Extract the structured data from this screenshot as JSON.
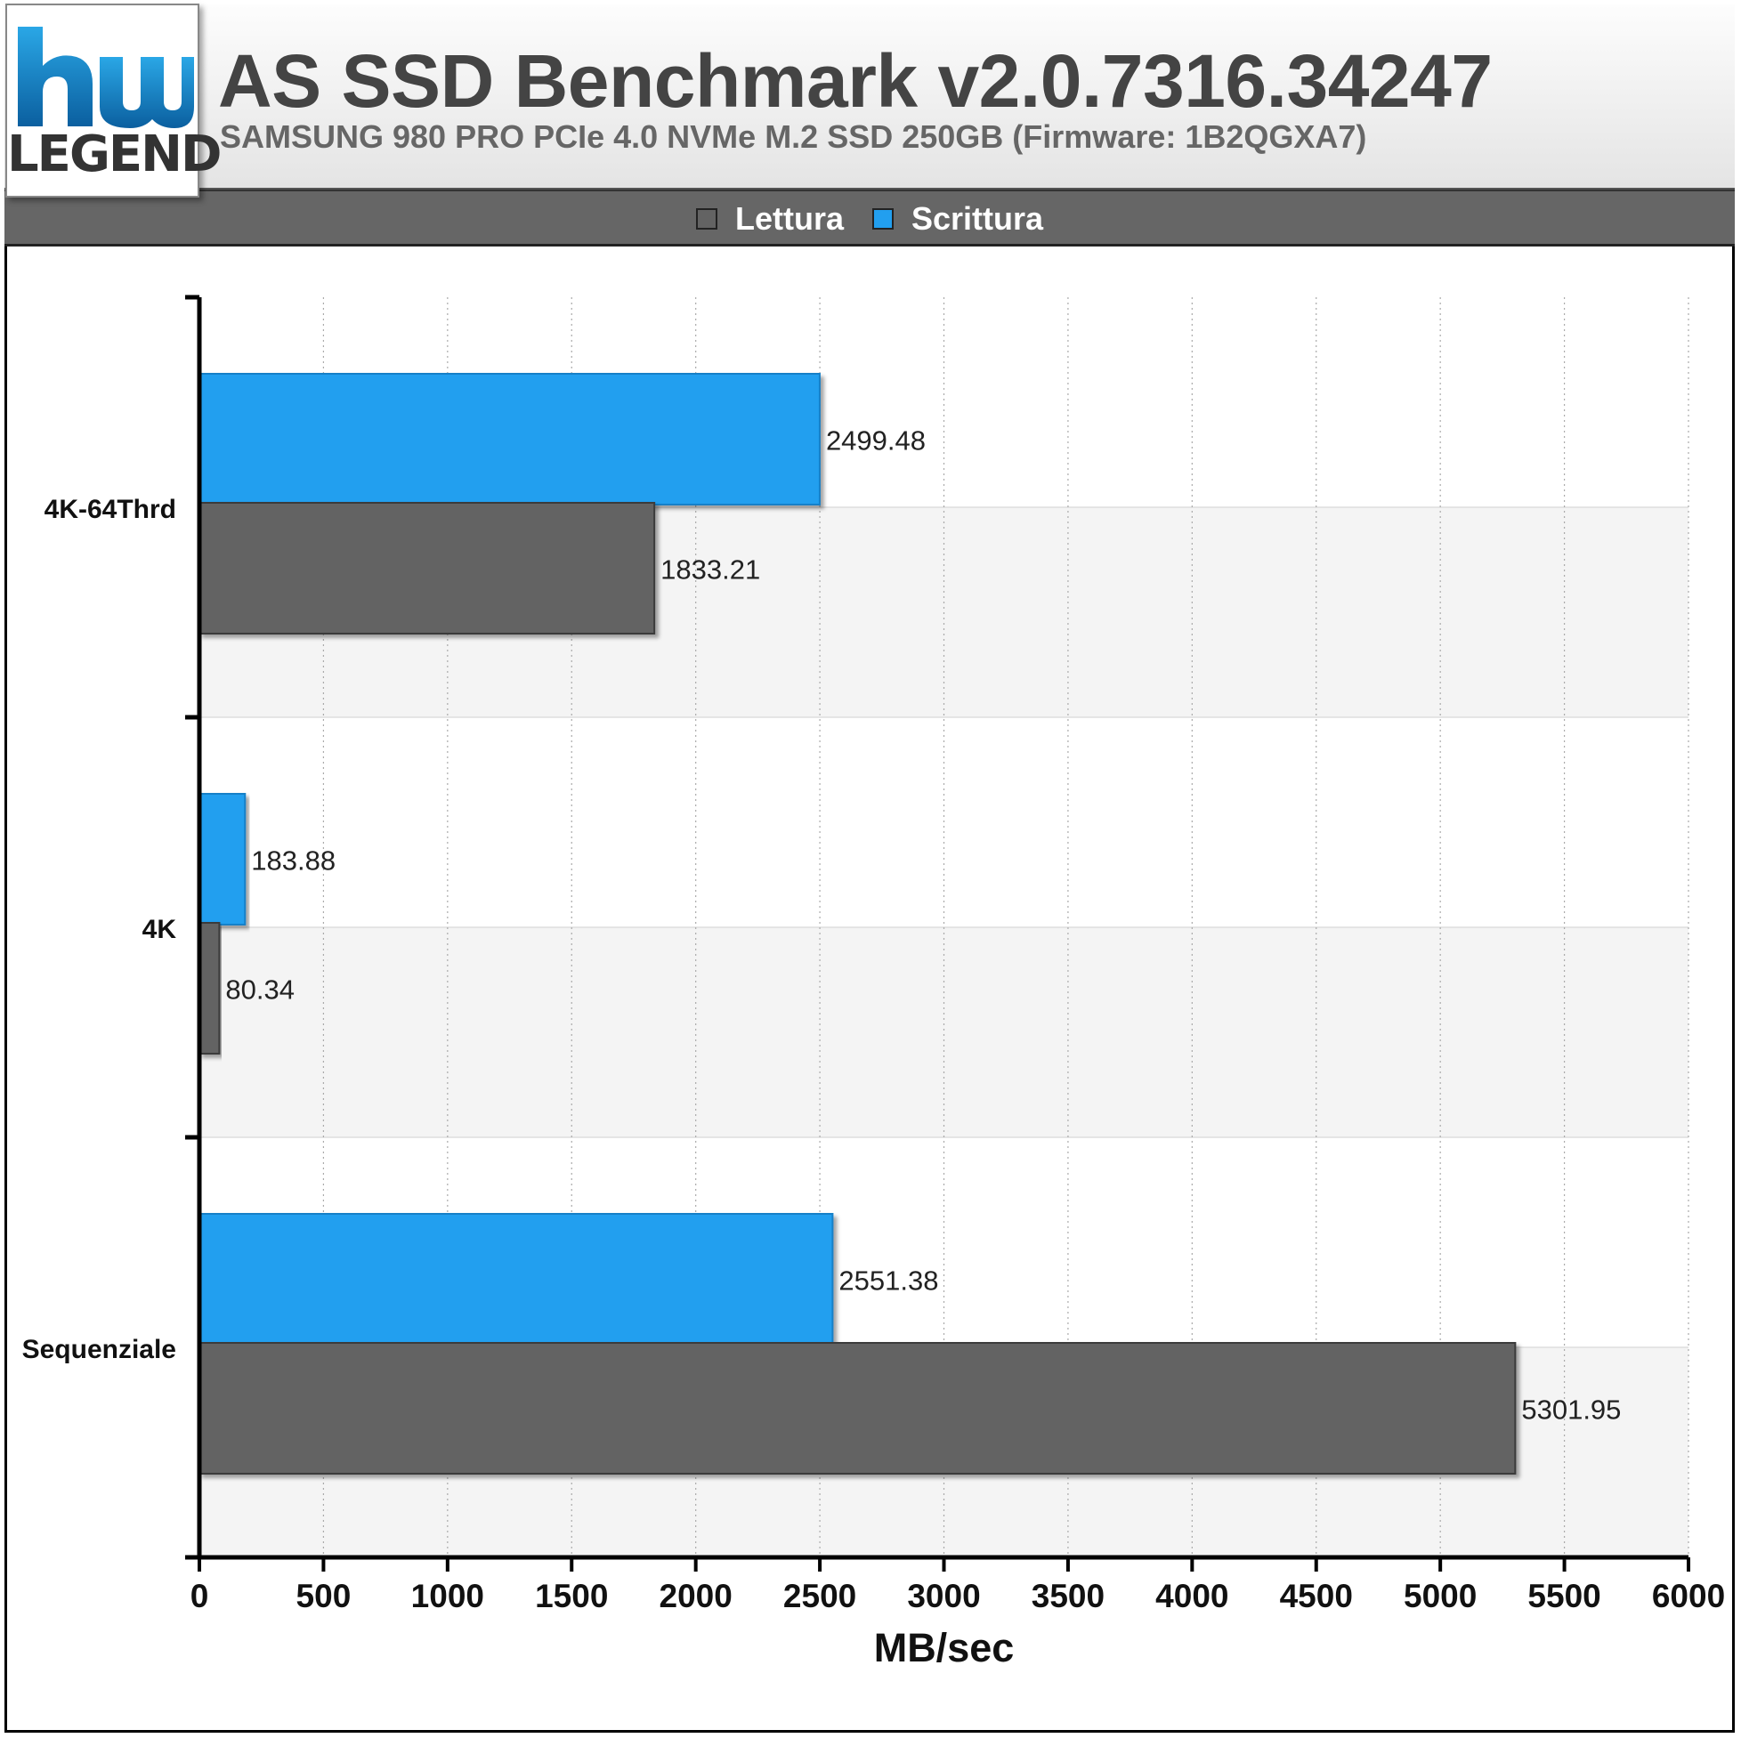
{
  "header": {
    "logo_text": "LEGEND",
    "title": "AS SSD Benchmark v2.0.7316.34247",
    "subtitle": "SAMSUNG 980 PRO PCIe 4.0 NVMe M.2 SSD 250GB (Firmware: 1B2QGXA7)"
  },
  "legend": {
    "items": [
      {
        "label": "Lettura",
        "color": "#636363"
      },
      {
        "label": "Scrittura",
        "color": "#229fef"
      }
    ]
  },
  "colors": {
    "read": "#636363",
    "write": "#229fef",
    "band_alt": "#f4f4f4"
  },
  "chart_data": {
    "type": "bar",
    "orientation": "horizontal",
    "categories": [
      "4K-64Thrd",
      "4K",
      "Sequenziale"
    ],
    "series": [
      {
        "name": "Scrittura",
        "values": [
          2499.48,
          183.88,
          2551.38
        ]
      },
      {
        "name": "Lettura",
        "values": [
          1833.21,
          80.34,
          5301.95
        ]
      }
    ],
    "xlabel": "MB/sec",
    "xlim": [
      0,
      6000
    ],
    "xticks": [
      0,
      500,
      1000,
      1500,
      2000,
      2500,
      3000,
      3500,
      4000,
      4500,
      5000,
      5500,
      6000
    ],
    "data_labels": [
      [
        "2499.48",
        "1833.21"
      ],
      [
        "183.88",
        "80.34"
      ],
      [
        "2551.38",
        "5301.95"
      ]
    ],
    "grid": true,
    "legend_position": "top-center"
  }
}
